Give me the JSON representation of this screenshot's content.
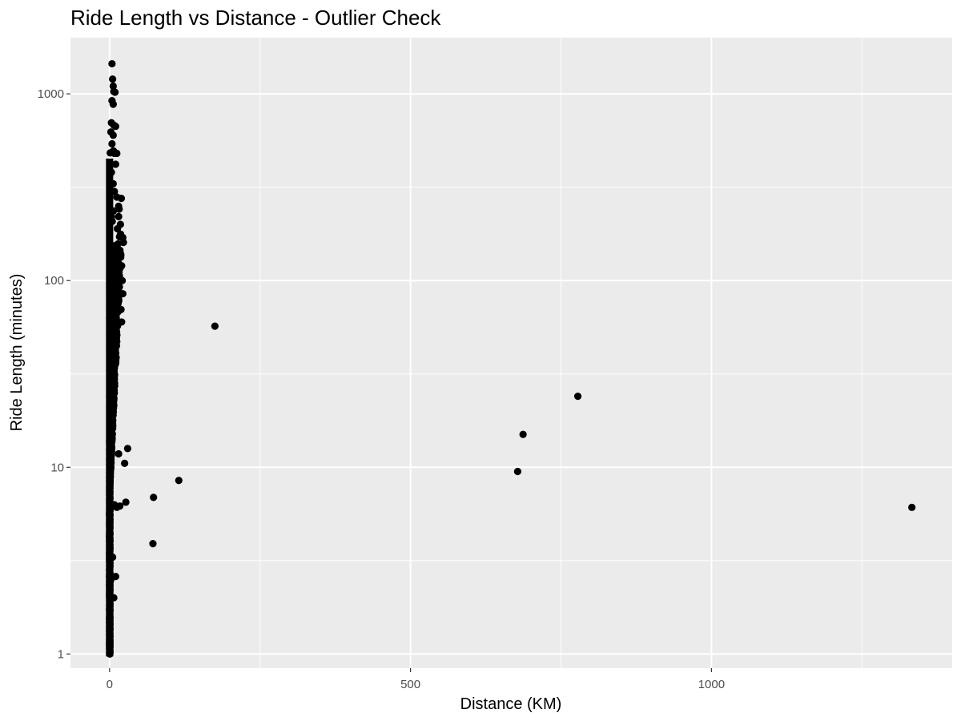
{
  "chart_data": {
    "type": "scatter",
    "title": "Ride Length vs Distance - Outlier Check",
    "xlabel": "Distance (KM)",
    "ylabel": "Ride Length (minutes)",
    "x_scale": "linear",
    "y_scale": "log10",
    "xlim": [
      -65,
      1400
    ],
    "ylim": [
      0.84,
      2000
    ],
    "x_ticks": [
      0,
      500,
      1000
    ],
    "x_tick_labels": [
      "0",
      "500",
      "1000"
    ],
    "y_ticks": [
      1,
      10,
      100,
      1000
    ],
    "y_tick_labels": [
      "1",
      "10",
      "100",
      "1000"
    ],
    "grid": true,
    "legend": "none",
    "colors": {
      "panel": "#ebebeb",
      "grid": "#ffffff",
      "point": "#000000",
      "tick": "#4d4d4d"
    },
    "dense_cluster": {
      "description": "thousands of overlapping points",
      "x_range": [
        0,
        22
      ],
      "y_range": [
        1,
        1450
      ]
    },
    "points": [
      [
        4,
        1450
      ],
      [
        5,
        1200
      ],
      [
        6,
        1100
      ],
      [
        7,
        1030
      ],
      [
        9,
        1020
      ],
      [
        4,
        920
      ],
      [
        6,
        880
      ],
      [
        3,
        700
      ],
      [
        7,
        680
      ],
      [
        10,
        670
      ],
      [
        6,
        600
      ],
      [
        4,
        540
      ],
      [
        8,
        480
      ],
      [
        12,
        480
      ],
      [
        10,
        420
      ],
      [
        3,
        380
      ],
      [
        6,
        330
      ],
      [
        8,
        300
      ],
      [
        12,
        280
      ],
      [
        15,
        250
      ],
      [
        18,
        200
      ],
      [
        22,
        170
      ],
      [
        23,
        160
      ],
      [
        20,
        120
      ],
      [
        21,
        100
      ],
      [
        22,
        85
      ],
      [
        19,
        70
      ],
      [
        20,
        60
      ],
      [
        175,
        57
      ],
      [
        778,
        24
      ],
      [
        687,
        15
      ],
      [
        678,
        9.5
      ],
      [
        1333,
        6.1
      ],
      [
        30,
        12.6
      ],
      [
        25,
        10.5
      ],
      [
        15,
        11.8
      ],
      [
        73,
        6.9
      ],
      [
        115,
        8.5
      ],
      [
        72,
        3.9
      ],
      [
        27,
        6.5
      ],
      [
        12,
        6.1
      ],
      [
        17,
        6.2
      ],
      [
        8,
        6.3
      ],
      [
        10,
        2.6
      ],
      [
        7,
        2.0
      ],
      [
        2,
        2.5
      ],
      [
        5,
        3.3
      ]
    ]
  }
}
